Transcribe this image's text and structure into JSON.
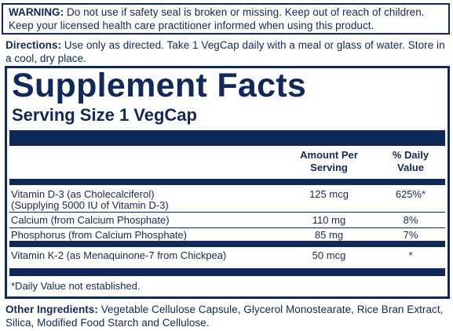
{
  "warning": {
    "label": "WARNING:",
    "line1": " Do not use if safety seal is broken or missing. Keep out of reach of children.",
    "line2": "Keep your licensed health care practitioner informed when using this product."
  },
  "directions": {
    "label": "Directions:",
    "text": " Use only as directed. Take 1 VegCap daily with a meal or glass of water. Store in a cool, dry place."
  },
  "facts": {
    "title": "Supplement Facts",
    "serving_size": "Serving Size 1 VegCap",
    "col_amount_line1": "Amount Per",
    "col_amount_line2": "Serving",
    "col_dv_line1": "% Daily",
    "col_dv_line2": "Value",
    "rows": [
      {
        "name": "Vitamin D-3 (as Cholecalciferol)",
        "sub": "(Supplying 5000 IU of Vitamin D-3)",
        "amount": "125 mcg",
        "dv": "625%*"
      },
      {
        "name": "Calcium (from Calcium Phosphate)",
        "amount": "110 mg",
        "dv": "8%"
      },
      {
        "name": "Phosphorus (from Calcium Phosphate)",
        "amount": "85 mg",
        "dv": "7%"
      },
      {
        "name": "Vitamin K-2 (as Menaquinone-7 from Chickpea)",
        "amount": "50 mcg",
        "dv": "*"
      }
    ],
    "footnote": "*Daily Value not established."
  },
  "other_ingredients": {
    "label": "Other Ingredients:",
    "text": " Vegetable Cellulose Capsule, Glycerol Monostearate, Rice Bran Extract, Silica, Modified Food Starch and Cellulose."
  }
}
